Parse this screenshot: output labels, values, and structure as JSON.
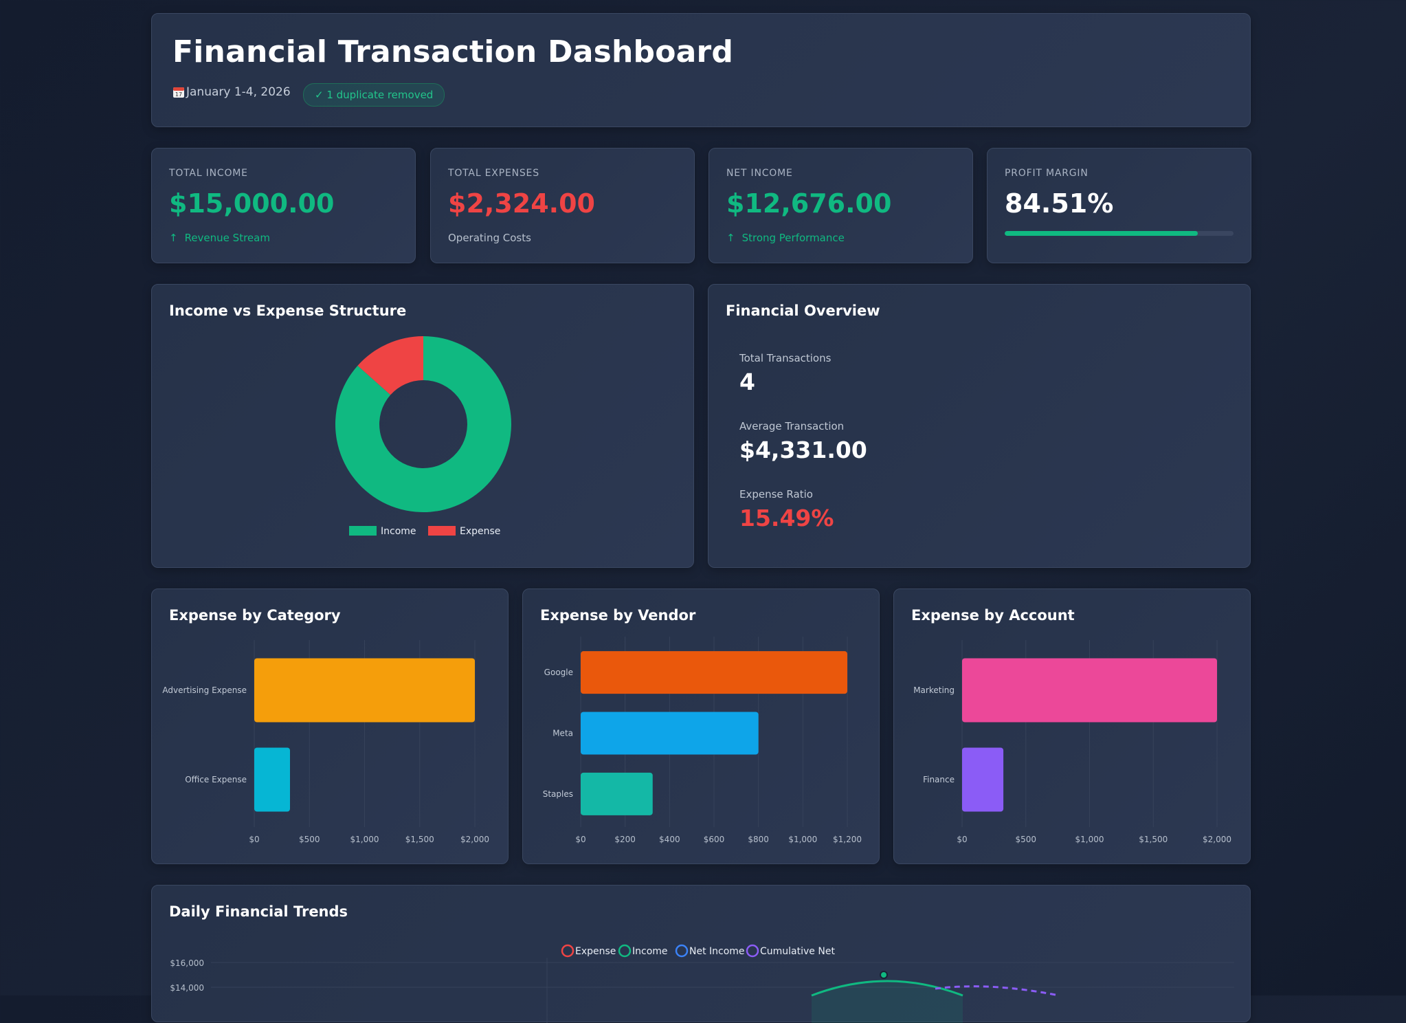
{
  "header": {
    "title": "Financial Transaction Dashboard",
    "date_range": "January 1-4, 2026",
    "calendar_icon": "calendar-icon",
    "calendar_day": "17",
    "duplicate_badge": "✓ 1 duplicate removed"
  },
  "kpis": [
    {
      "label": "TOTAL INCOME",
      "value": "$15,000.00",
      "sub": "Revenue Stream",
      "color": "#10b981",
      "icon": "arrow-up-icon"
    },
    {
      "label": "TOTAL EXPENSES",
      "value": "$2,324.00",
      "sub": "Operating Costs",
      "color": "#ef4444"
    },
    {
      "label": "NET INCOME",
      "value": "$12,676.00",
      "sub": "Strong Performance",
      "color": "#10b981",
      "icon": "arrow-up-icon"
    },
    {
      "label": "PROFIT MARGIN",
      "value": "84.51%",
      "progress_percent": 84.51,
      "color": "#ffffff"
    }
  ],
  "donut": {
    "title": "Income vs Expense Structure",
    "legend": [
      "Income",
      "Expense"
    ]
  },
  "overview": {
    "title": "Financial Overview",
    "items": [
      {
        "label": "Total Transactions",
        "value": "4",
        "color": "#ffffff"
      },
      {
        "label": "Average Transaction",
        "value": "$4,331.00",
        "color": "#ffffff"
      },
      {
        "label": "Expense Ratio",
        "value": "15.49%",
        "color": "#ef4444"
      }
    ]
  },
  "bar_titles": {
    "category": "Expense by Category",
    "vendor": "Expense by Vendor",
    "account": "Expense by Account"
  },
  "trend": {
    "title": "Daily Financial Trends"
  },
  "colors": {
    "income": "#10b981",
    "expense": "#ef4444",
    "net_income": "#3b82f6",
    "cumulative_net": "#8b5cf6"
  },
  "chart_data": [
    {
      "type": "pie",
      "title": "Income vs Expense Structure",
      "categories": [
        "Income",
        "Expense"
      ],
      "values": [
        15000,
        2324
      ],
      "colors": [
        "#10b981",
        "#ef4444"
      ],
      "legend": "bottom"
    },
    {
      "type": "bar",
      "orientation": "horizontal",
      "title": "Expense by Category",
      "categories": [
        "Advertising Expense",
        "Office Expense"
      ],
      "values": [
        2000,
        324
      ],
      "colors": [
        "#f59e0b",
        "#06b6d4"
      ],
      "xlim": [
        0,
        2000
      ],
      "xticks": [
        "$0",
        "$500",
        "$1,000",
        "$1,500",
        "$2,000"
      ],
      "grid": true
    },
    {
      "type": "bar",
      "orientation": "horizontal",
      "title": "Expense by Vendor",
      "categories": [
        "Google",
        "Meta",
        "Staples"
      ],
      "values": [
        1200,
        800,
        324
      ],
      "colors": [
        "#ea580c",
        "#0ea5e9",
        "#14b8a6"
      ],
      "xlim": [
        0,
        1200
      ],
      "xticks": [
        "$0",
        "$200",
        "$400",
        "$600",
        "$800",
        "$1,000",
        "$1,200"
      ],
      "grid": true
    },
    {
      "type": "bar",
      "orientation": "horizontal",
      "title": "Expense by Account",
      "categories": [
        "Marketing",
        "Finance"
      ],
      "values": [
        2000,
        324
      ],
      "colors": [
        "#ec4899",
        "#8b5cf6"
      ],
      "xlim": [
        0,
        2000
      ],
      "xticks": [
        "$0",
        "$500",
        "$1,000",
        "$1,500",
        "$2,000"
      ],
      "grid": true
    },
    {
      "type": "line",
      "title": "Daily Financial Trends",
      "legend": "top",
      "series": [
        {
          "name": "Expense"
        },
        {
          "name": "Income"
        },
        {
          "name": "Net Income"
        },
        {
          "name": "Cumulative Net"
        }
      ],
      "yticks": [
        "$16,000",
        "$14,000"
      ],
      "ylim": [
        0,
        16000
      ]
    }
  ]
}
